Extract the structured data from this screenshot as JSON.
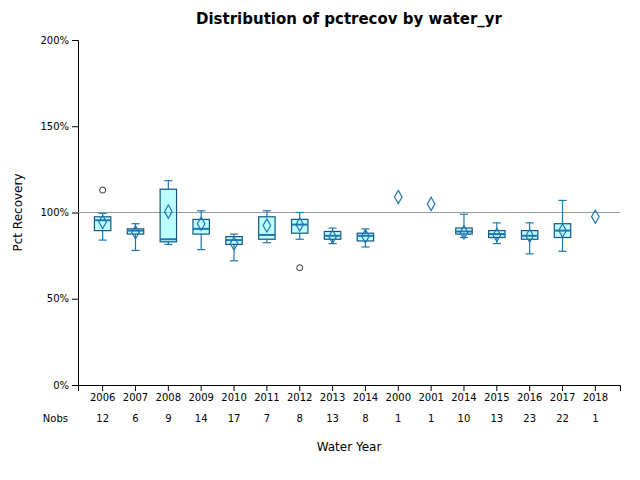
{
  "chart_data": {
    "type": "box",
    "title": "Distribution of pctrecov by water_yr",
    "x_label": "Water Year",
    "y_label": "Pct Recovery",
    "ylim": [
      0,
      200
    ],
    "yticks": [
      {
        "value": 0,
        "label": "0%"
      },
      {
        "value": 50,
        "label": "50%"
      },
      {
        "value": 100,
        "label": "100%"
      },
      {
        "value": 150,
        "label": "150%"
      },
      {
        "value": 200,
        "label": "200%"
      }
    ],
    "grid": false,
    "marker": "diamond",
    "reference_line": 100,
    "categories": [
      "2006",
      "2007",
      "2008",
      "2009",
      "2010",
      "2011",
      "2012",
      "2013",
      "2014",
      "2000",
      "2001",
      "2014",
      "2015",
      "2016",
      "2017",
      "2018"
    ],
    "nobs_label": "Nobs",
    "nobs": [
      12,
      6,
      9,
      14,
      17,
      7,
      8,
      13,
      8,
      1,
      1,
      10,
      13,
      23,
      22,
      1
    ],
    "boxes": [
      {
        "q1": 89.5,
        "median": 95.5,
        "q3": 97.5,
        "whislo": 84.0,
        "whishi": 99.5,
        "mean": 94.5,
        "fliers_low": [],
        "fliers_high": [
          113.0
        ]
      },
      {
        "q1": 87.5,
        "median": 89.5,
        "q3": 90.5,
        "whislo": 78.0,
        "whishi": 93.5,
        "mean": 88.5,
        "fliers_low": [],
        "fliers_high": []
      },
      {
        "q1": 83.0,
        "median": 84.5,
        "q3": 113.5,
        "whislo": 81.5,
        "whishi": 118.5,
        "mean": 100.5,
        "fliers_low": [],
        "fliers_high": []
      },
      {
        "q1": 87.5,
        "median": 90.5,
        "q3": 96.0,
        "whislo": 78.5,
        "whishi": 101.0,
        "mean": 93.5,
        "fliers_low": [],
        "fliers_high": []
      },
      {
        "q1": 81.5,
        "median": 84.0,
        "q3": 86.0,
        "whislo": 72.0,
        "whishi": 87.5,
        "mean": 82.0,
        "fliers_low": [],
        "fliers_high": []
      },
      {
        "q1": 84.5,
        "median": 87.0,
        "q3": 97.5,
        "whislo": 82.5,
        "whishi": 101.0,
        "mean": 92.5,
        "fliers_low": [],
        "fliers_high": []
      },
      {
        "q1": 88.0,
        "median": 93.0,
        "q3": 96.0,
        "whislo": 84.5,
        "whishi": 100.0,
        "mean": 93.0,
        "fliers_low": [
          68.0
        ],
        "fliers_high": []
      },
      {
        "q1": 84.5,
        "median": 86.5,
        "q3": 89.0,
        "whislo": 82.0,
        "whishi": 91.0,
        "mean": 86.0,
        "fliers_low": [],
        "fliers_high": []
      },
      {
        "q1": 83.5,
        "median": 86.5,
        "q3": 88.0,
        "whislo": 80.0,
        "whishi": 90.5,
        "mean": 86.3,
        "fliers_low": [],
        "fliers_high": []
      },
      {
        "q1": 109.0,
        "median": 109.0,
        "q3": 109.0,
        "whislo": 109.0,
        "whishi": 109.0,
        "mean": 109.0,
        "fliers_low": [],
        "fliers_high": []
      },
      {
        "q1": 105.0,
        "median": 105.0,
        "q3": 105.0,
        "whislo": 105.0,
        "whishi": 105.0,
        "mean": 105.0,
        "fliers_low": [],
        "fliers_high": []
      },
      {
        "q1": 87.5,
        "median": 89.0,
        "q3": 91.0,
        "whislo": 85.5,
        "whishi": 99.0,
        "mean": 88.5,
        "fliers_low": [],
        "fliers_high": []
      },
      {
        "q1": 85.5,
        "median": 87.5,
        "q3": 89.5,
        "whislo": 82.0,
        "whishi": 94.0,
        "mean": 87.0,
        "fliers_low": [],
        "fliers_high": []
      },
      {
        "q1": 84.5,
        "median": 86.5,
        "q3": 89.5,
        "whislo": 76.0,
        "whishi": 94.0,
        "mean": 86.5,
        "fliers_low": [],
        "fliers_high": []
      },
      {
        "q1": 85.5,
        "median": 89.5,
        "q3": 93.5,
        "whislo": 77.5,
        "whishi": 107.0,
        "mean": 89.5,
        "fliers_low": [],
        "fliers_high": []
      },
      {
        "q1": 97.5,
        "median": 97.5,
        "q3": 97.5,
        "whislo": 97.5,
        "whishi": 97.5,
        "mean": 97.5,
        "fliers_low": [],
        "fliers_high": []
      }
    ]
  }
}
